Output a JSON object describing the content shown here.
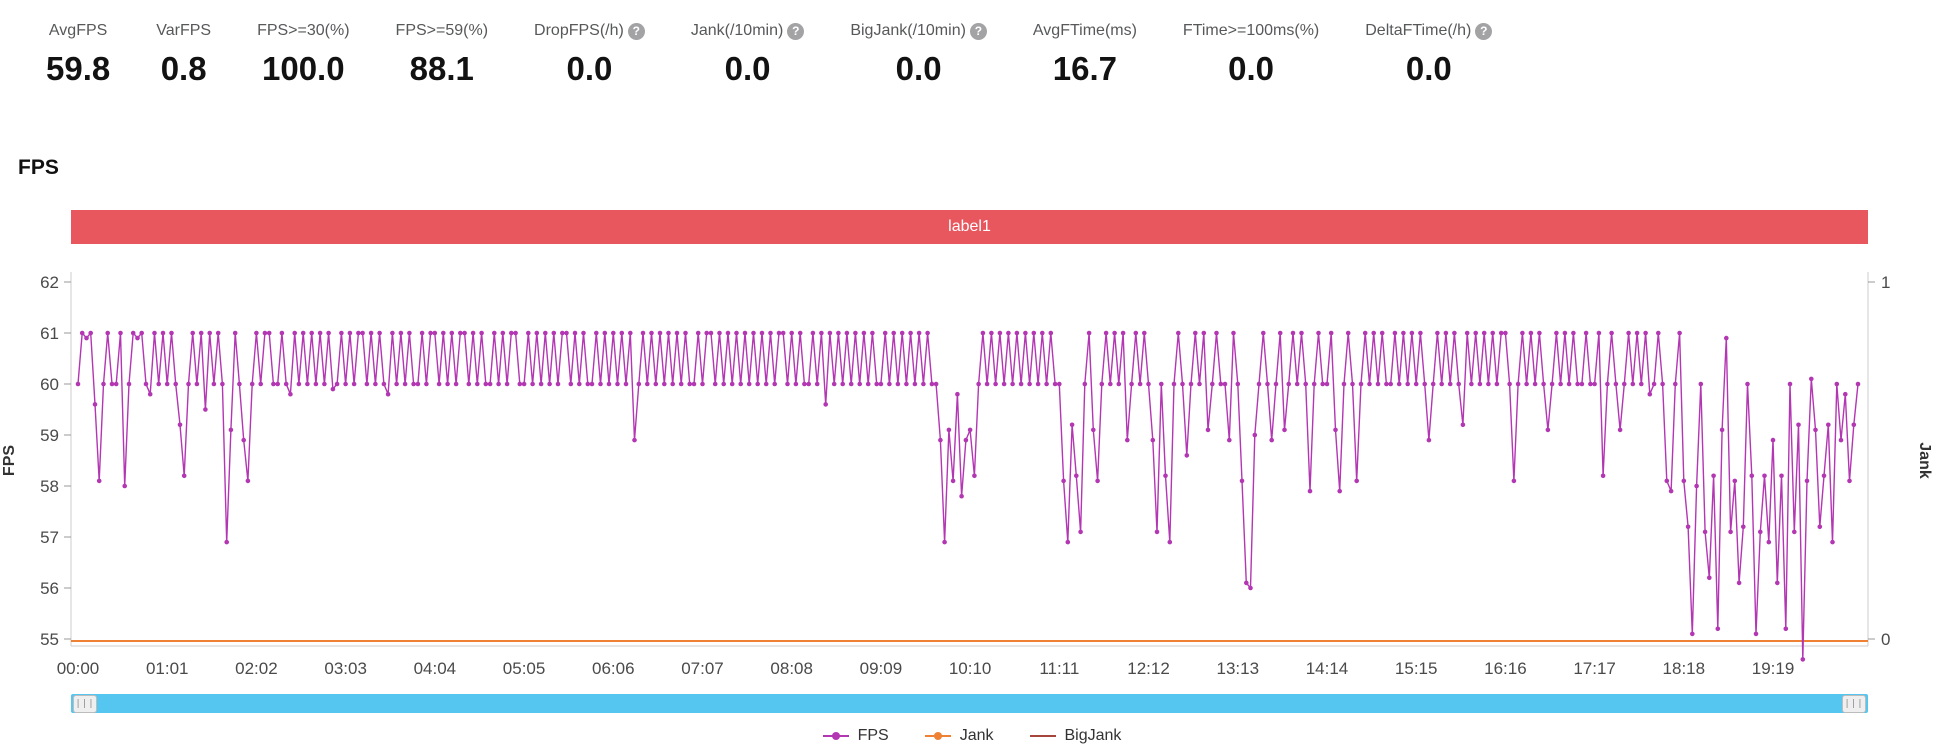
{
  "metrics": [
    {
      "label": "AvgFPS",
      "value": "59.8",
      "help": false
    },
    {
      "label": "VarFPS",
      "value": "0.8",
      "help": false
    },
    {
      "label": "FPS>=30(%)",
      "value": "100.0",
      "help": false
    },
    {
      "label": "FPS>=59(%)",
      "value": "88.1",
      "help": false
    },
    {
      "label": "DropFPS(/h)",
      "value": "0.0",
      "help": true
    },
    {
      "label": "Jank(/10min)",
      "value": "0.0",
      "help": true
    },
    {
      "label": "BigJank(/10min)",
      "value": "0.0",
      "help": true
    },
    {
      "label": "AvgFTime(ms)",
      "value": "16.7",
      "help": false
    },
    {
      "label": "FTime>=100ms(%)",
      "value": "0.0",
      "help": false
    },
    {
      "label": "DeltaFTime(/h)",
      "value": "0.0",
      "help": true
    }
  ],
  "help_icon_glyph": "?",
  "section_title": "FPS",
  "banner": {
    "label": "label1",
    "color": "#e8565e"
  },
  "scrollbar": {
    "handle_glyph": "|||",
    "color": "#54c6f0"
  },
  "chart_data": {
    "type": "line",
    "title": "FPS",
    "x_labels": [
      "00:00",
      "01:01",
      "02:02",
      "03:03",
      "04:04",
      "05:05",
      "06:06",
      "07:07",
      "08:08",
      "09:09",
      "10:10",
      "11:11",
      "12:12",
      "13:13",
      "14:14",
      "15:15",
      "16:16",
      "17:17",
      "18:18",
      "19:19"
    ],
    "points_per_label": 21,
    "left_axis": {
      "label": "FPS",
      "min": 55,
      "max": 62,
      "ticks": [
        55,
        56,
        57,
        58,
        59,
        60,
        61,
        62
      ]
    },
    "right_axis": {
      "label": "Jank",
      "min": 0,
      "max": 1,
      "ticks": [
        0,
        1
      ]
    },
    "grid": false,
    "legend_position": "bottom",
    "series": [
      {
        "name": "FPS",
        "color": "#b336b3",
        "yaxis": "left",
        "marker": "line-dot",
        "values": [
          60,
          61,
          60.9,
          61,
          59.6,
          58.1,
          60,
          61,
          60,
          60,
          61,
          58,
          60,
          61,
          60.9,
          61,
          60,
          59.8,
          61,
          60,
          61,
          60,
          61,
          60,
          59.2,
          58.2,
          60,
          61,
          60,
          61,
          59.5,
          61,
          60,
          61,
          60,
          56.9,
          59.1,
          61,
          60,
          58.9,
          58.1,
          60,
          61,
          60,
          61,
          61,
          60,
          60,
          61,
          60,
          59.8,
          61,
          60,
          61,
          60,
          61,
          60,
          61,
          60,
          61,
          59.9,
          60,
          61,
          60,
          61,
          60,
          61,
          61,
          60,
          61,
          60,
          61,
          60,
          59.8,
          61,
          60,
          61,
          60,
          61,
          60,
          60,
          61,
          60,
          61,
          61,
          60,
          61,
          60,
          61,
          60,
          61,
          61,
          60,
          61,
          60,
          61,
          60,
          60,
          61,
          60,
          61,
          60,
          61,
          61,
          60,
          60,
          61,
          60,
          61,
          60,
          61,
          60,
          61,
          60,
          61,
          61,
          60,
          61,
          60,
          61,
          60,
          60,
          61,
          60,
          61,
          60,
          61,
          60,
          61,
          60,
          61,
          58.9,
          60,
          61,
          60,
          61,
          60,
          61,
          60,
          61,
          60,
          61,
          60,
          61,
          60,
          60,
          61,
          60,
          61,
          61,
          60,
          61,
          60,
          61,
          60,
          61,
          60,
          61,
          60,
          61,
          60,
          61,
          60,
          61,
          60,
          61,
          61,
          60,
          61,
          60,
          61,
          60,
          60,
          61,
          60,
          61,
          59.6,
          61,
          60,
          61,
          60,
          61,
          60,
          61,
          60,
          61,
          60,
          61,
          60,
          60,
          61,
          60,
          61,
          60,
          61,
          60,
          61,
          60,
          61,
          60,
          61,
          60,
          60,
          58.9,
          56.9,
          59.1,
          58.1,
          59.8,
          57.8,
          58.9,
          59.1,
          58.2,
          60,
          61,
          60,
          61,
          60,
          61,
          60,
          61,
          60,
          61,
          60,
          61,
          60,
          61,
          60,
          61,
          60,
          61,
          60,
          60,
          58.1,
          56.9,
          59.2,
          58.2,
          57.1,
          60,
          61,
          59.1,
          58.1,
          60,
          61,
          60,
          61,
          60,
          61,
          58.9,
          60,
          61,
          60,
          61,
          60,
          58.9,
          57.1,
          60,
          58.2,
          56.9,
          60,
          61,
          60,
          58.6,
          60,
          61,
          60,
          61,
          59.1,
          60,
          61,
          60,
          60,
          58.9,
          61,
          60,
          58.1,
          56.1,
          56,
          59,
          60,
          61,
          60,
          58.9,
          60,
          61,
          59.1,
          60,
          61,
          60,
          61,
          60,
          57.9,
          60,
          61,
          60,
          60,
          61,
          59.1,
          57.9,
          60,
          61,
          60,
          58.1,
          60,
          61,
          60,
          61,
          60,
          61,
          60,
          60,
          61,
          60,
          61,
          60,
          61,
          60,
          61,
          60,
          58.9,
          60,
          61,
          60,
          61,
          60,
          61,
          60,
          59.2,
          61,
          60,
          61,
          60,
          61,
          60,
          61,
          60,
          61,
          61,
          60,
          58.1,
          60,
          61,
          60,
          61,
          60,
          61,
          60,
          59.1,
          60,
          61,
          60,
          61,
          60,
          61,
          60,
          60,
          61,
          60,
          60,
          61,
          58.2,
          60,
          61,
          60,
          59.1,
          60,
          61,
          60,
          61,
          60,
          61,
          59.8,
          60,
          61,
          60,
          58.1,
          57.9,
          60,
          61,
          58.1,
          57.2,
          55.1,
          58,
          60,
          57.1,
          56.2,
          58.2,
          55.2,
          59.1,
          60.9,
          57.1,
          58.1,
          56.1,
          57.2,
          60,
          58.2,
          55.1,
          57.1,
          58.2,
          56.9,
          58.9,
          56.1,
          58.2,
          55.2,
          60,
          57.1,
          59.2,
          54.6,
          58.1,
          60.1,
          59.1,
          57.2,
          58.2,
          59.2,
          56.9,
          60,
          58.9,
          59.8,
          58.1,
          59.2,
          60
        ]
      },
      {
        "name": "Jank",
        "color": "#ee8133",
        "yaxis": "right",
        "marker": "line-dot",
        "constant": 0
      },
      {
        "name": "BigJank",
        "color": "#a6453c",
        "yaxis": "right",
        "marker": "line",
        "constant": 0
      }
    ]
  }
}
